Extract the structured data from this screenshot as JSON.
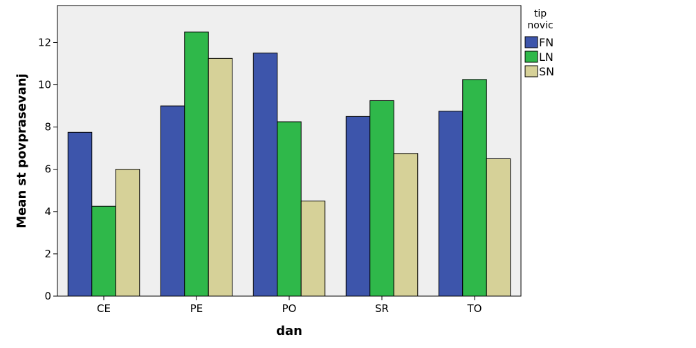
{
  "chart_data": {
    "type": "bar",
    "xlabel": "dan",
    "ylabel": "Mean st povprasevanj",
    "categories": [
      "CE",
      "PE",
      "PO",
      "SR",
      "TO"
    ],
    "ylim": [
      0,
      13.75
    ],
    "yticks": [
      0,
      2,
      4,
      6,
      8,
      10,
      12
    ],
    "grid": false,
    "legend": {
      "title": [
        "tip",
        "novic"
      ],
      "position": "right"
    },
    "series": [
      {
        "name": "FN",
        "color": "#3d55ab",
        "values": [
          7.75,
          9.0,
          11.5,
          8.5,
          8.75
        ]
      },
      {
        "name": "LN",
        "color": "#2fb84a",
        "values": [
          4.25,
          12.5,
          8.25,
          9.25,
          10.25
        ]
      },
      {
        "name": "SN",
        "color": "#d6d198",
        "values": [
          6.0,
          11.25,
          4.5,
          6.75,
          6.5
        ]
      }
    ],
    "plot_background": "#efefef"
  }
}
